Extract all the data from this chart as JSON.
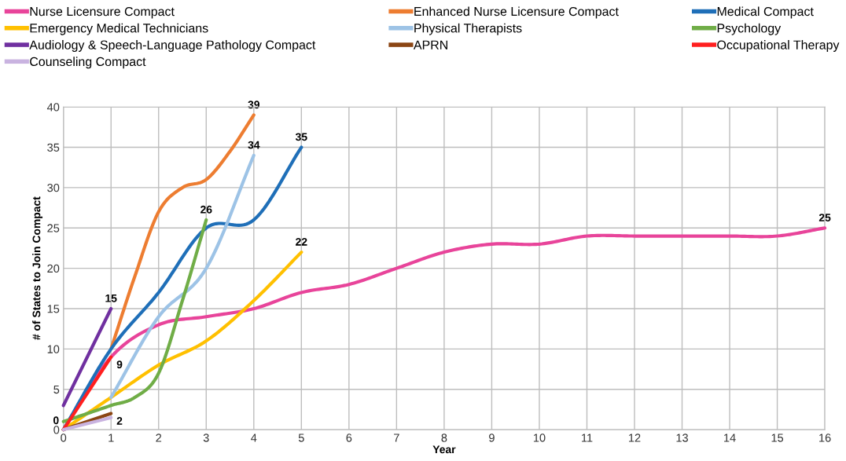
{
  "chart_data": {
    "type": "line",
    "xlabel": "Year",
    "ylabel": "# of States to Join Compact",
    "xlim": [
      0,
      16
    ],
    "ylim": [
      0,
      40
    ],
    "xticks": [
      0,
      1,
      2,
      3,
      4,
      5,
      6,
      7,
      8,
      9,
      10,
      11,
      12,
      13,
      14,
      15,
      16
    ],
    "yticks": [
      0,
      5,
      10,
      15,
      20,
      25,
      30,
      35,
      40
    ],
    "grid": true,
    "legend": "top",
    "line_style": "solid",
    "marker": "none",
    "series": [
      {
        "name": "Nurse Licensure Compact",
        "color": "#e8449a",
        "x": [
          0,
          1,
          2,
          3,
          4,
          5,
          6,
          7,
          8,
          9,
          10,
          11,
          12,
          13,
          14,
          15,
          16
        ],
        "values": [
          0,
          9,
          13,
          14,
          15,
          17,
          18,
          20,
          22,
          23,
          23,
          24,
          24,
          24,
          24,
          24,
          25
        ],
        "value_labels": [
          "0",
          null,
          null,
          null,
          null,
          null,
          null,
          null,
          null,
          null,
          null,
          null,
          null,
          null,
          null,
          null,
          "25"
        ]
      },
      {
        "name": "Enhanced Nurse Licensure Compact",
        "color": "#ed7d31",
        "x": [
          1,
          1.5,
          2,
          2.5,
          3,
          3.5,
          4
        ],
        "values": [
          10,
          19,
          27,
          30,
          31,
          34.5,
          39
        ],
        "value_labels": [
          null,
          null,
          null,
          null,
          null,
          null,
          "39"
        ]
      },
      {
        "name": "Medical Compact",
        "color": "#1f6fb8",
        "x": [
          0,
          1,
          2,
          3,
          4,
          5
        ],
        "values": [
          0,
          10,
          17,
          25,
          26,
          35
        ],
        "value_labels": [
          null,
          null,
          null,
          null,
          null,
          "35"
        ]
      },
      {
        "name": "Emergency Medical Technicians",
        "color": "#ffc000",
        "x": [
          0,
          1,
          2,
          3,
          4,
          5
        ],
        "values": [
          0,
          4,
          8,
          11,
          16,
          22
        ],
        "value_labels": [
          null,
          null,
          null,
          null,
          null,
          "22"
        ]
      },
      {
        "name": "Physical Therapists",
        "color": "#9dc3e6",
        "x": [
          1,
          2,
          3,
          4
        ],
        "values": [
          4,
          14,
          20,
          34
        ],
        "value_labels": [
          null,
          null,
          null,
          "34"
        ]
      },
      {
        "name": "Psychology",
        "color": "#70ad47",
        "x": [
          0,
          0.5,
          1,
          1.5,
          2,
          2.5,
          3
        ],
        "values": [
          1,
          2,
          3,
          4,
          7,
          16,
          26
        ],
        "value_labels": [
          null,
          null,
          null,
          null,
          null,
          null,
          "26"
        ]
      },
      {
        "name": "Audiology & Speech-Language Pathology Compact",
        "color": "#7030a0",
        "x": [
          0,
          1
        ],
        "values": [
          3,
          15
        ],
        "value_labels": [
          null,
          "15"
        ]
      },
      {
        "name": "APRN",
        "color": "#8b4513",
        "x": [
          0,
          1
        ],
        "values": [
          0,
          2
        ],
        "value_labels": [
          null,
          "2"
        ]
      },
      {
        "name": "Occupational Therapy",
        "color": "#ff1f1f",
        "x": [
          0,
          1
        ],
        "values": [
          0,
          9
        ],
        "value_labels": [
          null,
          "9"
        ]
      },
      {
        "name": "Counseling Compact",
        "color": "#c9b3e0",
        "x": [
          0,
          1
        ],
        "values": [
          0,
          1.5
        ]
      }
    ]
  }
}
